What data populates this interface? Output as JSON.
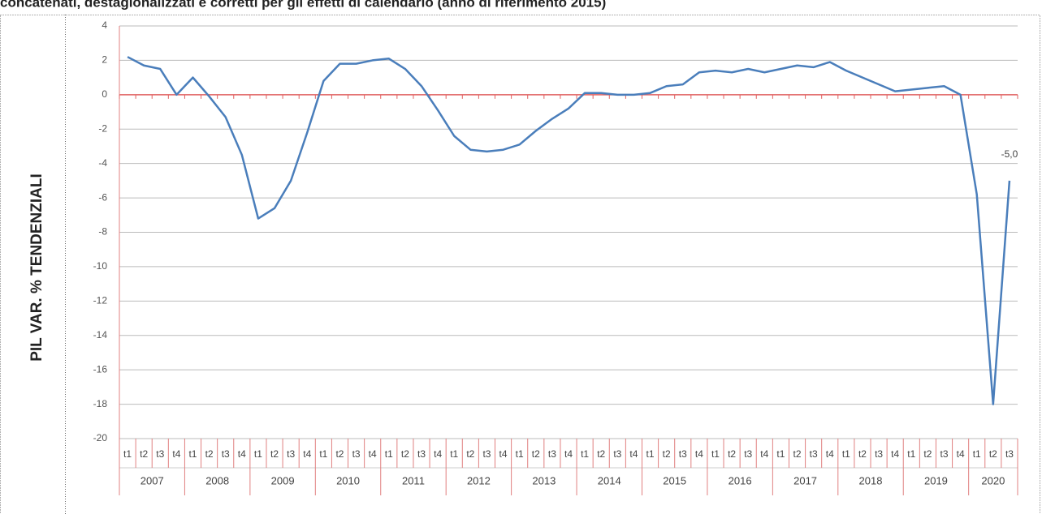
{
  "chart_data": {
    "type": "line",
    "subtitle": "concatenati, destagionalizzati e corretti per gli effetti di calendario (anno di riferimento 2015)",
    "y_label": "PIL VAR. % TENDENZIALI",
    "categories": [
      "t1",
      "t2",
      "t3",
      "t4",
      "t1",
      "t2",
      "t3",
      "t4",
      "t1",
      "t2",
      "t3",
      "t4",
      "t1",
      "t2",
      "t3",
      "t4",
      "t1",
      "t2",
      "t3",
      "t4",
      "t1",
      "t2",
      "t3",
      "t4",
      "t1",
      "t2",
      "t3",
      "t4",
      "t1",
      "t2",
      "t3",
      "t4",
      "t1",
      "t2",
      "t3",
      "t4",
      "t1",
      "t2",
      "t3",
      "t4",
      "t1",
      "t2",
      "t3",
      "t4",
      "t1",
      "t2",
      "t3",
      "t4",
      "t1",
      "t2",
      "t3",
      "t4",
      "t1",
      "t2",
      "t3"
    ],
    "years": [
      "2007",
      "2008",
      "2009",
      "2010",
      "2011",
      "2012",
      "2013",
      "2014",
      "2015",
      "2016",
      "2017",
      "2018",
      "2019",
      "2020"
    ],
    "values": [
      2.2,
      1.7,
      1.5,
      0.0,
      1.0,
      -0.1,
      -1.3,
      -3.5,
      -7.2,
      -6.6,
      -5.0,
      -2.2,
      0.8,
      1.8,
      1.8,
      2.0,
      2.1,
      1.5,
      0.5,
      -0.9,
      -2.4,
      -3.2,
      -3.3,
      -3.2,
      -2.9,
      -2.1,
      -1.4,
      -0.8,
      0.1,
      0.1,
      0.0,
      0.0,
      0.1,
      0.5,
      0.6,
      1.3,
      1.4,
      1.3,
      1.5,
      1.3,
      1.5,
      1.7,
      1.6,
      1.9,
      1.4,
      1.0,
      0.6,
      0.2,
      0.3,
      0.4,
      0.5,
      0.0,
      -5.8,
      -18.0,
      -5.0
    ],
    "value_labels": [
      null,
      null,
      null,
      null,
      null,
      null,
      null,
      null,
      null,
      null,
      null,
      null,
      null,
      null,
      null,
      null,
      null,
      null,
      null,
      null,
      null,
      null,
      null,
      null,
      null,
      null,
      null,
      null,
      null,
      null,
      null,
      null,
      null,
      null,
      null,
      null,
      null,
      null,
      null,
      null,
      null,
      null,
      null,
      null,
      null,
      null,
      null,
      null,
      null,
      null,
      null,
      null,
      null,
      null,
      "-5,0"
    ],
    "color": "#4a7ebb",
    "ylim": [
      -20,
      4
    ],
    "yticks": [
      -20,
      -18,
      -16,
      -14,
      -12,
      -10,
      -8,
      -6,
      -4,
      -2,
      0,
      2,
      4
    ],
    "grid": true
  }
}
